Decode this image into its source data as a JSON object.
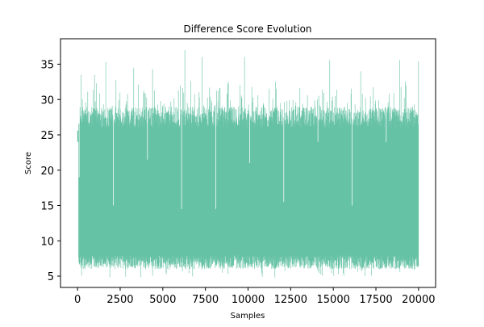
{
  "chart_data": {
    "type": "line",
    "title": "Difference Score Evolution",
    "xlabel": "Samples",
    "ylabel": "Score",
    "xlim": [
      -1000,
      21000
    ],
    "ylim": [
      3.4,
      38.6
    ],
    "xticks": [
      0,
      2500,
      5000,
      7500,
      10000,
      12500,
      15000,
      17500,
      20000
    ],
    "yticks": [
      5,
      10,
      15,
      20,
      25,
      30,
      35
    ],
    "grid": false,
    "legend": "none",
    "series": [
      {
        "color": "#66c2a5",
        "n_samples": 20000,
        "y_min": 4.8,
        "y_max": 37.0,
        "typical_upper": [
          26,
          29
        ],
        "typical_lower": [
          6,
          8
        ],
        "dip_x": [
          100,
          2100,
          4100,
          6100,
          8100,
          10100,
          12100,
          14100,
          16100,
          18100
        ],
        "dip_y": [
          19,
          15,
          21.5,
          14.5,
          14.5,
          21,
          15.5,
          24,
          15,
          24
        ],
        "peaks": [
          {
            "x": 200,
            "y": 33.5
          },
          {
            "x": 1000,
            "y": 33.5
          },
          {
            "x": 1650,
            "y": 35.3
          },
          {
            "x": 3300,
            "y": 34.5
          },
          {
            "x": 4400,
            "y": 34.3
          },
          {
            "x": 6300,
            "y": 37.0
          },
          {
            "x": 7300,
            "y": 36.0
          },
          {
            "x": 9800,
            "y": 36.0
          },
          {
            "x": 11600,
            "y": 32.5
          },
          {
            "x": 14800,
            "y": 35.6
          },
          {
            "x": 16600,
            "y": 34.0
          },
          {
            "x": 18900,
            "y": 35.6
          },
          {
            "x": 20000,
            "y": 35.4
          }
        ],
        "start_value": 25.6,
        "end_value": 26.0
      }
    ]
  }
}
